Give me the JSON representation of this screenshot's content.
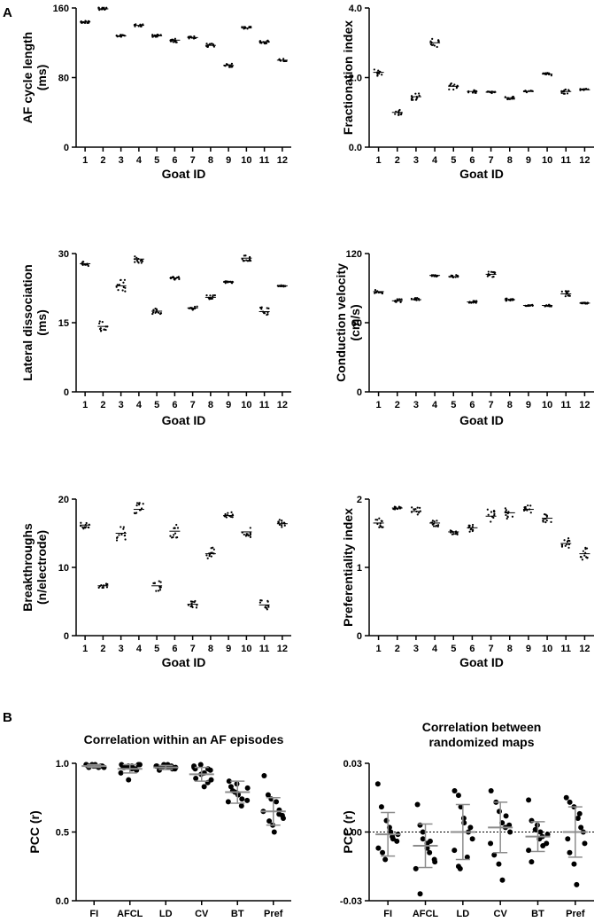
{
  "panel_labels": {
    "a": "A",
    "b": "B"
  },
  "chart_data": [
    {
      "type": "scatter",
      "style": "dotstrip",
      "title": "",
      "xlabel": "Goat ID",
      "ylabel": "AF cycle length (ms)",
      "ylabel_lines": [
        "AF cycle length",
        "(ms)"
      ],
      "categories": [
        "1",
        "2",
        "3",
        "4",
        "5",
        "6",
        "7",
        "8",
        "9",
        "10",
        "11",
        "12"
      ],
      "ylim": [
        0,
        160
      ],
      "yticks": [
        "0",
        "80",
        "160"
      ],
      "values": [
        144,
        159,
        128,
        140,
        128,
        123,
        126,
        117,
        94,
        137,
        121,
        100
      ],
      "spread": [
        1.5,
        1.5,
        1.5,
        1.5,
        1.5,
        3,
        1.5,
        2,
        2,
        1.5,
        2,
        1.5
      ]
    },
    {
      "type": "scatter",
      "style": "dotstrip",
      "title": "",
      "xlabel": "Goat ID",
      "ylabel": "Fractionation index",
      "ylabel_lines": [
        "Fractionation index"
      ],
      "categories": [
        "1",
        "2",
        "3",
        "4",
        "5",
        "6",
        "7",
        "8",
        "9",
        "10",
        "11",
        "12"
      ],
      "ylim": [
        0,
        4
      ],
      "yticks": [
        "0.0",
        "2.0",
        "4.0"
      ],
      "values": [
        2.15,
        1.0,
        1.45,
        3.0,
        1.75,
        1.6,
        1.58,
        1.42,
        1.6,
        2.1,
        1.6,
        1.65
      ],
      "spread": [
        0.1,
        0.08,
        0.1,
        0.12,
        0.1,
        0.05,
        0.03,
        0.05,
        0.03,
        0.04,
        0.07,
        0.03
      ]
    },
    {
      "type": "scatter",
      "style": "dotstrip",
      "title": "",
      "xlabel": "Goat ID",
      "ylabel": "Lateral dissociation (ms)",
      "ylabel_lines": [
        "Lateral dissociation",
        "(ms)"
      ],
      "categories": [
        "1",
        "2",
        "3",
        "4",
        "5",
        "6",
        "7",
        "8",
        "9",
        "10",
        "11",
        "12"
      ],
      "ylim": [
        0,
        30
      ],
      "yticks": [
        "0",
        "15",
        "30"
      ],
      "values": [
        27.8,
        14.2,
        23.0,
        28.8,
        17.5,
        24.7,
        18.2,
        20.5,
        23.8,
        29.0,
        17.4,
        23.0
      ],
      "spread": [
        0.5,
        1.2,
        1.3,
        0.9,
        0.6,
        0.4,
        0.5,
        0.5,
        0.2,
        0.6,
        1.0,
        0.2
      ]
    },
    {
      "type": "scatter",
      "style": "dotstrip",
      "title": "",
      "xlabel": "Goat ID",
      "ylabel": "Conduction velocity (cm/s)",
      "ylabel_lines": [
        "Conduction velocity",
        "(cm/s)"
      ],
      "categories": [
        "1",
        "2",
        "3",
        "4",
        "5",
        "6",
        "7",
        "8",
        "9",
        "10",
        "11",
        "12"
      ],
      "ylim": [
        0,
        120
      ],
      "yticks": [
        "0",
        "60",
        "120"
      ],
      "values": [
        87,
        79,
        80,
        101,
        100,
        78,
        102,
        80,
        75,
        75,
        85,
        77
      ],
      "spread": [
        2,
        1.5,
        1.5,
        1,
        1.5,
        1,
        3,
        1,
        0.5,
        1,
        2.5,
        0.5
      ]
    },
    {
      "type": "scatter",
      "style": "dotstrip",
      "title": "",
      "xlabel": "Goat ID",
      "ylabel": "Breakthroughs (n/electrode)",
      "ylabel_lines": [
        "Breakthroughs",
        "(n/electrode)"
      ],
      "categories": [
        "1",
        "2",
        "3",
        "4",
        "5",
        "6",
        "7",
        "8",
        "9",
        "10",
        "11",
        "12"
      ],
      "ylim": [
        0,
        20
      ],
      "yticks": [
        "0",
        "10",
        "20"
      ],
      "values": [
        16.2,
        7.3,
        15.0,
        18.5,
        7.3,
        15.3,
        4.6,
        12.0,
        17.6,
        15.2,
        4.5,
        16.4
      ],
      "spread": [
        0.6,
        0.3,
        1.3,
        1.0,
        0.8,
        1.0,
        0.5,
        0.9,
        0.5,
        0.9,
        0.7,
        0.6
      ]
    },
    {
      "type": "scatter",
      "style": "dotstrip",
      "title": "",
      "xlabel": "Goat ID",
      "ylabel": "Preferentiality index",
      "ylabel_lines": [
        "Preferentiality index"
      ],
      "categories": [
        "1",
        "2",
        "3",
        "4",
        "5",
        "6",
        "7",
        "8",
        "9",
        "10",
        "11",
        "12"
      ],
      "ylim": [
        0,
        2
      ],
      "yticks": [
        "0",
        "1",
        "2"
      ],
      "values": [
        1.65,
        1.87,
        1.82,
        1.65,
        1.52,
        1.58,
        1.75,
        1.8,
        1.85,
        1.72,
        1.35,
        1.2
      ],
      "spread": [
        0.07,
        0.02,
        0.06,
        0.06,
        0.04,
        0.06,
        0.1,
        0.1,
        0.06,
        0.07,
        0.08,
        0.1
      ]
    },
    {
      "type": "scatter",
      "style": "meansd",
      "title": "Correlation within an AF episodes",
      "xlabel": "",
      "ylabel": "PCC (r)",
      "categories": [
        "FI",
        "AFCL",
        "LD",
        "CV",
        "BT",
        "Pref"
      ],
      "ylim": [
        0,
        1
      ],
      "yticks": [
        "0.0",
        "0.5",
        "1.0"
      ],
      "zero_line": false,
      "mean": [
        0.98,
        0.96,
        0.97,
        0.92,
        0.79,
        0.65
      ],
      "sd": [
        0.01,
        0.03,
        0.015,
        0.05,
        0.08,
        0.1
      ],
      "points": [
        [
          0.99,
          0.98,
          0.99,
          0.98,
          0.97,
          0.98,
          0.99,
          0.97,
          0.98,
          0.99,
          0.98,
          0.97
        ],
        [
          0.99,
          0.97,
          0.98,
          0.96,
          0.95,
          0.99,
          0.93,
          0.97,
          0.88,
          0.98,
          0.96,
          0.99
        ],
        [
          0.98,
          0.97,
          0.98,
          0.99,
          0.96,
          0.97,
          0.98,
          0.95,
          0.99,
          0.97,
          0.98,
          0.96
        ],
        [
          0.98,
          0.96,
          0.99,
          0.93,
          0.86,
          0.95,
          0.97,
          0.89,
          0.92,
          0.83,
          0.96,
          0.88
        ],
        [
          0.87,
          0.83,
          0.79,
          0.77,
          0.74,
          0.73,
          0.72,
          0.8,
          0.85,
          0.78,
          0.69,
          0.82
        ],
        [
          0.91,
          0.77,
          0.74,
          0.72,
          0.66,
          0.62,
          0.65,
          0.58,
          0.55,
          0.5,
          0.63,
          0.6
        ]
      ]
    },
    {
      "type": "scatter",
      "style": "meansd",
      "title": "Correlation between randomized maps",
      "title_lines": [
        "Correlation between",
        "randomized maps"
      ],
      "xlabel": "",
      "ylabel": "PCC (r)",
      "categories": [
        "FI",
        "AFCL",
        "LD",
        "CV",
        "BT",
        "Pref"
      ],
      "ylim": [
        -0.03,
        0.03
      ],
      "yticks": [
        "-0.03",
        "0.00",
        "0.03"
      ],
      "zero_line": true,
      "mean": [
        -0.001,
        -0.006,
        0.0,
        0.002,
        -0.002,
        0.0
      ],
      "sd": [
        0.0095,
        0.0095,
        0.012,
        0.011,
        0.0065,
        0.011
      ],
      "points": [
        [
          0.021,
          0.011,
          0.005,
          0.002,
          -0.002,
          -0.004,
          -0.007,
          -0.009,
          -0.012,
          0.0,
          -0.003,
          -0.001
        ],
        [
          0.012,
          0.003,
          -0.003,
          -0.005,
          -0.009,
          -0.012,
          -0.016,
          -0.027,
          0.0,
          -0.007,
          -0.004,
          -0.013
        ],
        [
          0.018,
          0.016,
          0.011,
          0.004,
          0.0,
          -0.003,
          -0.008,
          -0.015,
          -0.016,
          0.006,
          -0.011,
          0.002
        ],
        [
          0.018,
          0.013,
          0.009,
          0.004,
          0.002,
          0.0,
          -0.005,
          -0.01,
          -0.014,
          -0.021,
          0.007,
          0.003
        ],
        [
          0.014,
          0.005,
          0.003,
          0.0,
          -0.002,
          -0.005,
          -0.008,
          -0.013,
          0.001,
          -0.003,
          -0.006,
          -0.001
        ],
        [
          0.015,
          0.013,
          0.011,
          0.006,
          0.002,
          0.0,
          -0.003,
          -0.009,
          -0.014,
          -0.023,
          0.008,
          -0.005
        ]
      ]
    }
  ]
}
